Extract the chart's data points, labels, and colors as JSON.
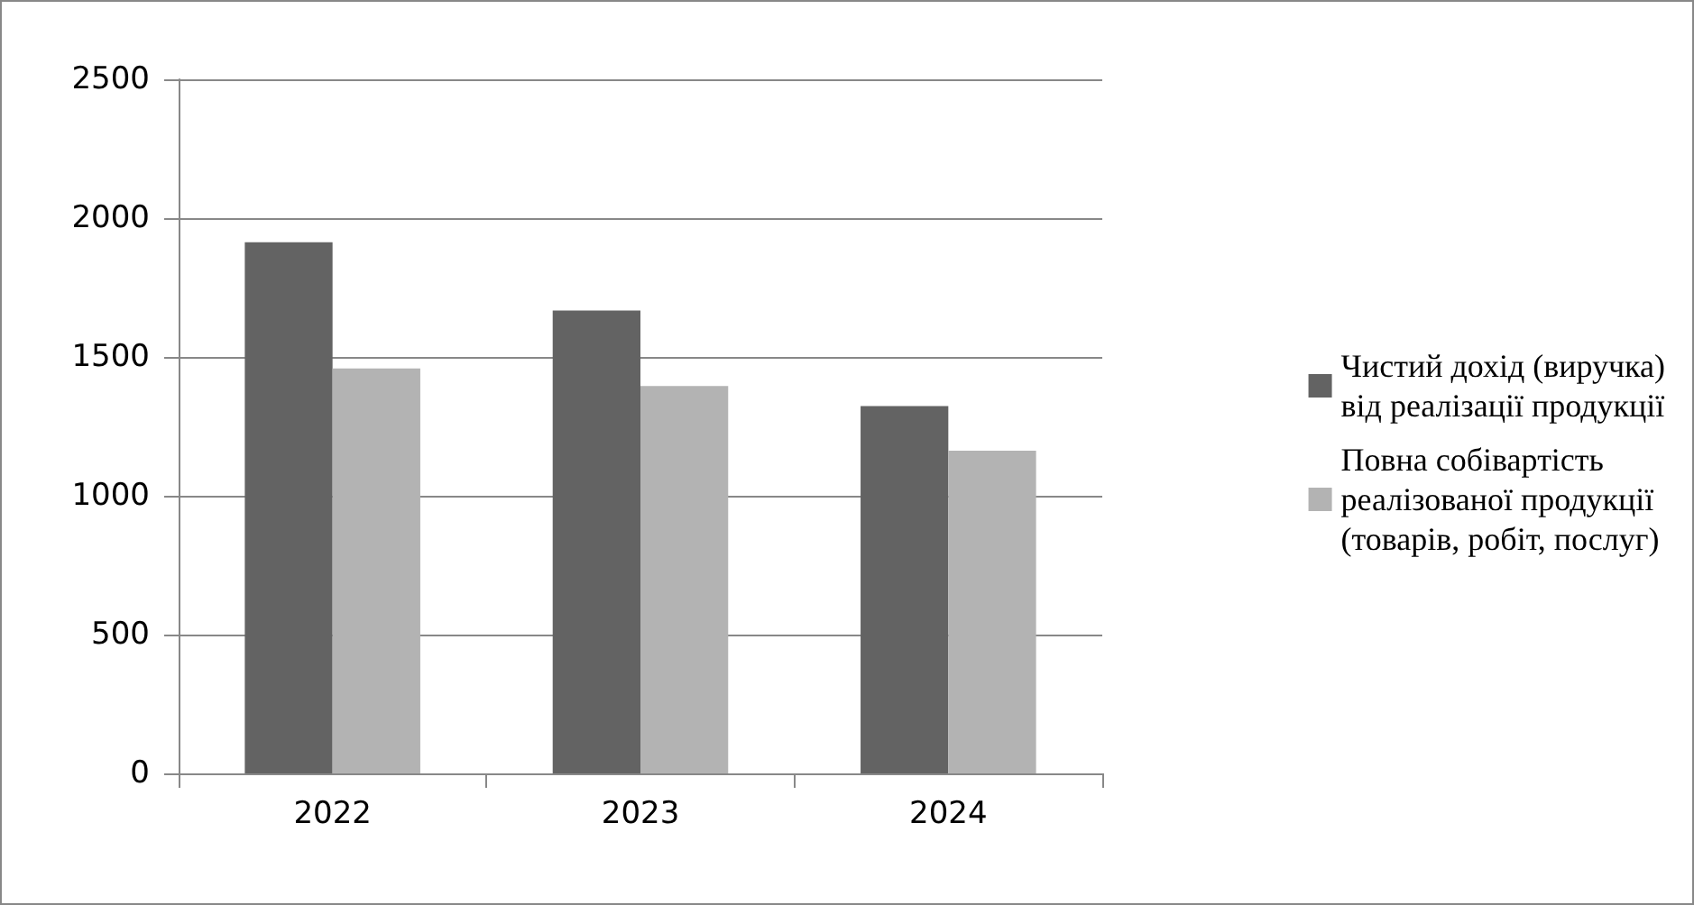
{
  "chart_data": {
    "type": "bar",
    "categories": [
      "2022",
      "2023",
      "2024"
    ],
    "series": [
      {
        "name": "Чистий дохід (виручка) від реалізації продукції",
        "color": "#636363",
        "values": [
          1913,
          1667,
          1323
        ]
      },
      {
        "name": "Повна собівартість реалізованої продукції (товарів, робіт, послуг)",
        "color": "#b3b3b3",
        "values": [
          1459,
          1395,
          1162
        ]
      }
    ],
    "ylim": [
      0,
      2500
    ],
    "yticks": [
      0,
      500,
      1000,
      1500,
      2000,
      2500
    ],
    "grid": "y",
    "legend": "right"
  }
}
